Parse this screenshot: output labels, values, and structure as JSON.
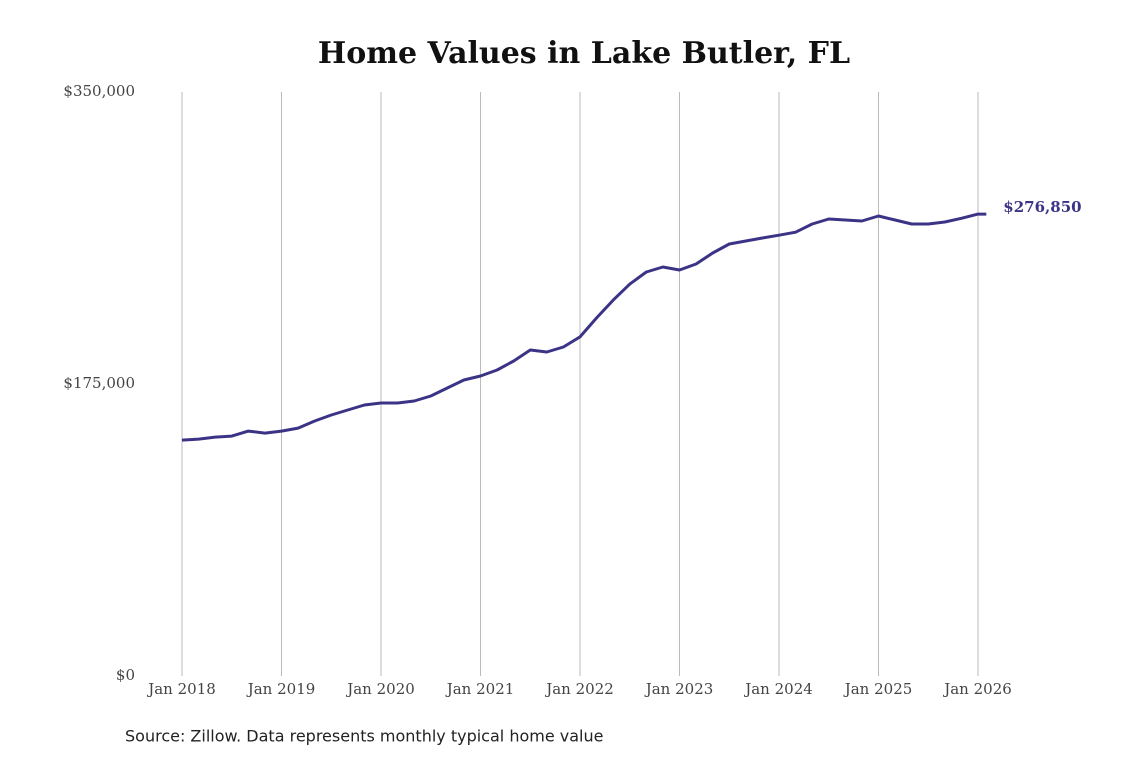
{
  "chart_data": {
    "type": "line",
    "title": "Home Values in Lake Butler, FL",
    "note": "Source: Zillow. Data represents monthly typical home value",
    "x": [
      "2018-01",
      "2018-03",
      "2018-05",
      "2018-07",
      "2018-09",
      "2018-11",
      "2019-01",
      "2019-03",
      "2019-05",
      "2019-07",
      "2019-09",
      "2019-11",
      "2020-01",
      "2020-03",
      "2020-05",
      "2020-07",
      "2020-09",
      "2020-11",
      "2021-01",
      "2021-03",
      "2021-05",
      "2021-07",
      "2021-09",
      "2021-11",
      "2022-01",
      "2022-03",
      "2022-05",
      "2022-07",
      "2022-09",
      "2022-11",
      "2023-01",
      "2023-03",
      "2023-05",
      "2023-07",
      "2023-09",
      "2023-11",
      "2024-01",
      "2024-03",
      "2024-05",
      "2024-07",
      "2024-09",
      "2024-11",
      "2025-01",
      "2025-03",
      "2025-05",
      "2025-07",
      "2025-09",
      "2025-11",
      "2026-01",
      "2026-02"
    ],
    "values": [
      141400,
      142000,
      143200,
      143800,
      146800,
      145600,
      146800,
      148600,
      152800,
      156400,
      159400,
      162400,
      163600,
      163600,
      164800,
      167800,
      172600,
      177400,
      179800,
      183400,
      188800,
      195400,
      194200,
      197200,
      203200,
      214600,
      225300,
      234900,
      242100,
      245100,
      243300,
      246900,
      253500,
      258900,
      260700,
      262500,
      264200,
      266000,
      270900,
      273900,
      273300,
      272700,
      275700,
      273300,
      270900,
      270900,
      272100,
      274300,
      276800,
      276850
    ],
    "value_labels": [
      null,
      null,
      null,
      null,
      null,
      null,
      null,
      null,
      null,
      null,
      null,
      null,
      null,
      null,
      null,
      null,
      null,
      null,
      null,
      null,
      null,
      null,
      null,
      null,
      null,
      null,
      null,
      null,
      null,
      null,
      null,
      null,
      null,
      null,
      null,
      null,
      null,
      null,
      null,
      null,
      null,
      null,
      null,
      null,
      null,
      null,
      null,
      null,
      null,
      "$276,850"
    ],
    "color": "#3b3486",
    "xlim": [
      "2018-01",
      "2026-01"
    ],
    "xticks": [
      {
        "value": "2018-01",
        "label": "Jan 2018"
      },
      {
        "value": "2019-01",
        "label": "Jan 2019"
      },
      {
        "value": "2020-01",
        "label": "Jan 2020"
      },
      {
        "value": "2021-01",
        "label": "Jan 2021"
      },
      {
        "value": "2022-01",
        "label": "Jan 2022"
      },
      {
        "value": "2023-01",
        "label": "Jan 2023"
      },
      {
        "value": "2024-01",
        "label": "Jan 2024"
      },
      {
        "value": "2025-01",
        "label": "Jan 2025"
      },
      {
        "value": "2026-01",
        "label": "Jan 2026"
      }
    ],
    "ylim": [
      0,
      350000
    ],
    "yticks": [
      {
        "value": 0,
        "label": "$0"
      },
      {
        "value": 175000,
        "label": "$175,000"
      },
      {
        "value": 350000,
        "label": "$350,000"
      }
    ],
    "grid": "x"
  }
}
